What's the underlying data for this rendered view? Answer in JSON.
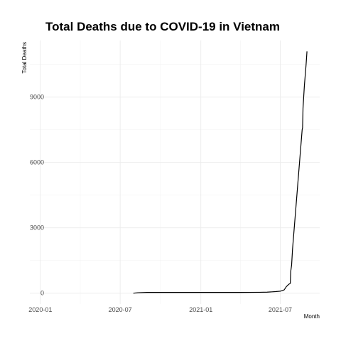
{
  "chart_data": {
    "type": "line",
    "title": "Total Deaths due to COVID-19 in Vietnam",
    "xlabel": "Month",
    "ylabel": "Total Deaths",
    "x_axis_type": "date",
    "xlim": [
      "2019-12-08",
      "2021-09-29"
    ],
    "ylim": [
      -500,
      11600
    ],
    "x_ticks": [
      {
        "value": "2020-01-01",
        "label": "2020-01"
      },
      {
        "value": "2020-07-01",
        "label": "2020-07"
      },
      {
        "value": "2021-01-01",
        "label": "2021-01"
      },
      {
        "value": "2021-07-01",
        "label": "2021-07"
      }
    ],
    "y_ticks": [
      {
        "value": 0,
        "label": "0"
      },
      {
        "value": 3000,
        "label": "3000"
      },
      {
        "value": 6000,
        "label": "6000"
      },
      {
        "value": 9000,
        "label": "9000"
      }
    ],
    "grid": true,
    "series": [
      {
        "color": "#000000",
        "points": [
          [
            "2020-07-31",
            0
          ],
          [
            "2020-08-10",
            20
          ],
          [
            "2020-08-31",
            33
          ],
          [
            "2020-09-30",
            35
          ],
          [
            "2020-12-31",
            35
          ],
          [
            "2021-03-31",
            35
          ],
          [
            "2021-05-15",
            40
          ],
          [
            "2021-06-01",
            47
          ],
          [
            "2021-06-20",
            70
          ],
          [
            "2021-07-01",
            90
          ],
          [
            "2021-07-10",
            150
          ],
          [
            "2021-07-15",
            300
          ],
          [
            "2021-07-20",
            400
          ],
          [
            "2021-07-24",
            450
          ],
          [
            "2021-07-25",
            1000
          ],
          [
            "2021-07-27",
            1300
          ],
          [
            "2021-07-29",
            2000
          ],
          [
            "2021-08-02",
            3000
          ],
          [
            "2021-08-06",
            4000
          ],
          [
            "2021-08-10",
            5000
          ],
          [
            "2021-08-14",
            6000
          ],
          [
            "2021-08-18",
            7000
          ],
          [
            "2021-08-20",
            7500
          ],
          [
            "2021-08-21",
            7600
          ],
          [
            "2021-08-22",
            8500
          ],
          [
            "2021-08-25",
            9500
          ],
          [
            "2021-08-29",
            10500
          ],
          [
            "2021-08-31",
            11100
          ]
        ]
      }
    ]
  }
}
